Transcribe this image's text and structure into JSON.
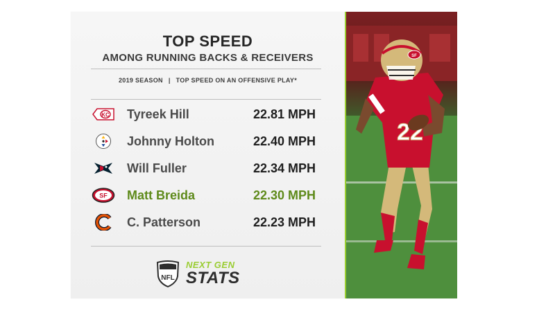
{
  "header": {
    "title": "TOP SPEED",
    "subtitle": "AMONG RUNNING BACKS & RECEIVERS",
    "season": "2019 SEASON",
    "separator": "|",
    "metric": "TOP SPEED ON AN OFFENSIVE PLAY*"
  },
  "rows": [
    {
      "team_icon": "chiefs-logo-icon",
      "name": "Tyreek Hill",
      "speed": "22.81 MPH",
      "highlight": false
    },
    {
      "team_icon": "steelers-logo-icon",
      "name": "Johnny Holton",
      "speed": "22.40 MPH",
      "highlight": false
    },
    {
      "team_icon": "texans-logo-icon",
      "name": "Will Fuller",
      "speed": "22.34 MPH",
      "highlight": false
    },
    {
      "team_icon": "49ers-logo-icon",
      "name": "Matt Breida",
      "speed": "22.30 MPH",
      "highlight": true
    },
    {
      "team_icon": "bears-logo-icon",
      "name": "C. Patterson",
      "speed": "22.23 MPH",
      "highlight": false
    }
  ],
  "branding": {
    "nfl": "NFL",
    "line1": "NEXT GEN",
    "line2": "STATS"
  },
  "player_photo": {
    "jersey_number": "22",
    "helmet_logo": "SF"
  },
  "colors": {
    "accent_green": "#9acd32",
    "highlight_text": "#5e8a1a",
    "niners_red": "#c8102e",
    "niners_gold": "#d4b97a"
  }
}
